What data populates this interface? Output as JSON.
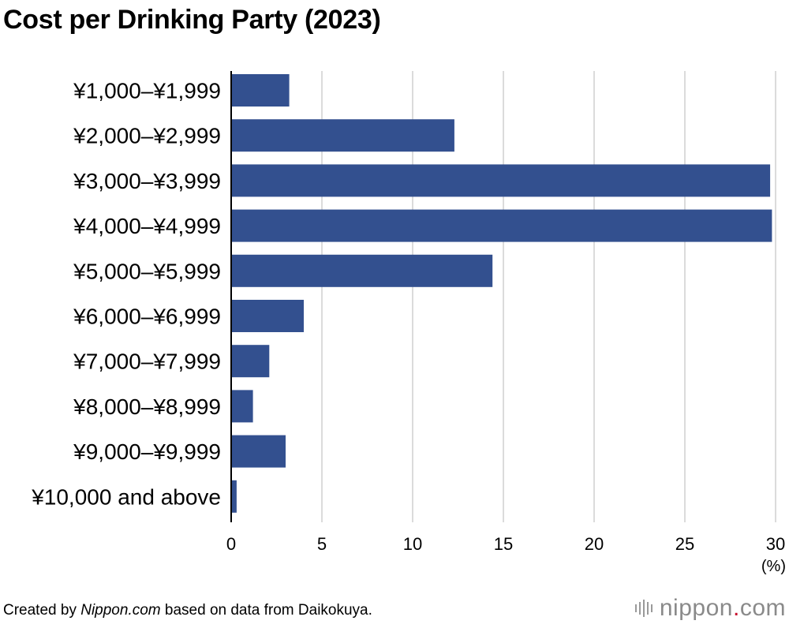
{
  "title": "Cost per Drinking Party (2023)",
  "footer": {
    "prefix": "Created by ",
    "source_site": "Nippon.com",
    "suffix": " based on data from Daikokuya."
  },
  "logo": {
    "name": "nippon",
    "dot": ".",
    "tld": "com"
  },
  "colors": {
    "bar": "#33508f",
    "grid": "#cfcfcf",
    "axis": "#000000"
  },
  "chart_data": {
    "type": "bar",
    "orientation": "horizontal",
    "title": "Cost per Drinking Party (2023)",
    "categories": [
      "¥1,000–¥1,999",
      "¥2,000–¥2,999",
      "¥3,000–¥3,999",
      "¥4,000–¥4,999",
      "¥5,000–¥5,999",
      "¥6,000–¥6,999",
      "¥7,000–¥7,999",
      "¥8,000–¥8,999",
      "¥9,000–¥9,999",
      "¥10,000 and above"
    ],
    "values": [
      3.2,
      12.3,
      29.7,
      29.8,
      14.4,
      4.0,
      2.1,
      1.2,
      3.0,
      0.3
    ],
    "xlim": [
      0,
      30
    ],
    "xticks": [
      "0",
      "5",
      "10",
      "15",
      "20",
      "25",
      "30"
    ],
    "xlabel": "(%)",
    "grid": true
  }
}
